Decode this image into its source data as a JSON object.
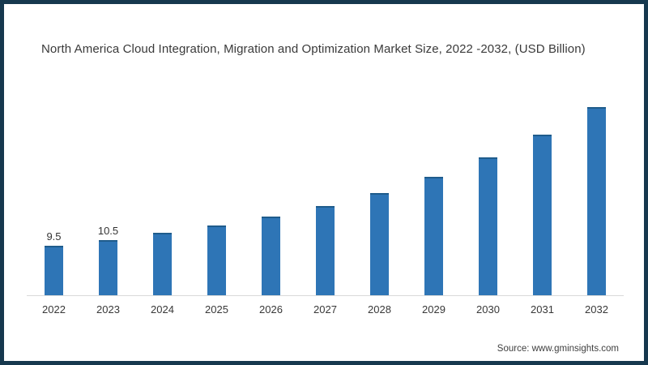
{
  "chart_data": {
    "type": "bar",
    "title": "North America Cloud Integration, Migration and Optimization Market Size, 2022 -2032, (USD Billion)",
    "categories": [
      "2022",
      "2023",
      "2024",
      "2025",
      "2026",
      "2027",
      "2028",
      "2029",
      "2030",
      "2031",
      "2032"
    ],
    "values": [
      9.5,
      10.5,
      11.9,
      13.3,
      15.0,
      17.1,
      19.6,
      22.6,
      26.3,
      30.7,
      36.0
    ],
    "data_labels": [
      "9.5",
      "10.5",
      "",
      "",
      "",
      "",
      "",
      "",
      "",
      "",
      ""
    ],
    "xlabel": "",
    "ylabel": "",
    "ylim": [
      0,
      38
    ],
    "grid": false,
    "legend": false,
    "y_axis_visible": false,
    "bar_color": "#2e75b6"
  },
  "source": {
    "text": "Source: www.gminsights.com"
  },
  "colors": {
    "frame_border": "#16384e",
    "bar_fill": "#2e75b6",
    "bar_top_edge": "#1f5c8c",
    "axis_line": "#d9d9d9",
    "title_text": "#3a3a3a",
    "tick_text": "#383838",
    "source_text": "#3f3f3f",
    "background": "#ffffff"
  }
}
